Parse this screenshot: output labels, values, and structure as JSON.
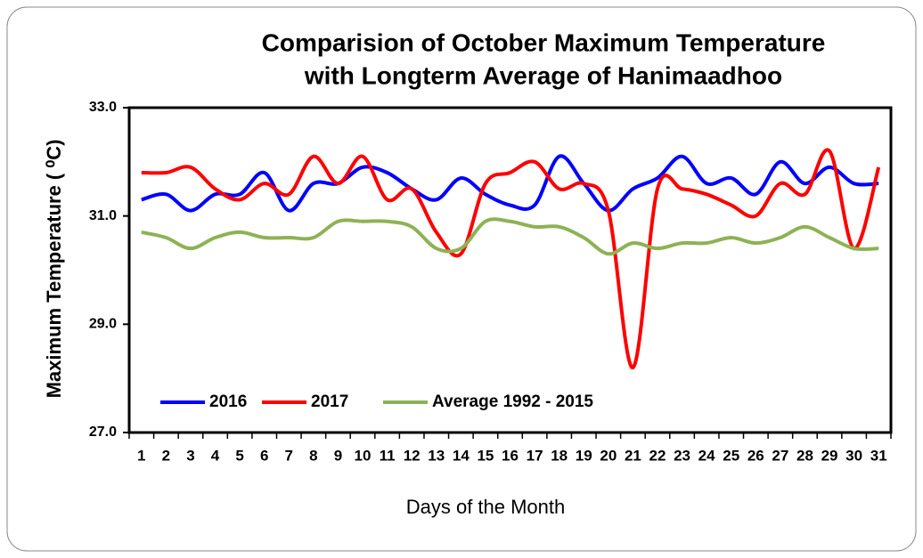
{
  "chart_data": {
    "type": "line",
    "title": [
      "Comparision of October Maximum Temperature",
      "with Longterm Average of Hanimaadhoo"
    ],
    "x_label": "Days of the Month",
    "y_label": "Maximum Temperature ( ⁰C)",
    "categories": [
      "1",
      "2",
      "3",
      "4",
      "5",
      "6",
      "7",
      "8",
      "9",
      "10",
      "11",
      "12",
      "13",
      "14",
      "15",
      "16",
      "17",
      "18",
      "19",
      "20",
      "21",
      "22",
      "23",
      "24",
      "25",
      "26",
      "27",
      "28",
      "29",
      "30",
      "31"
    ],
    "series": [
      {
        "name": "2016",
        "color": "#0000ff",
        "values": [
          31.3,
          31.4,
          31.1,
          31.4,
          31.4,
          31.8,
          31.1,
          31.6,
          31.6,
          31.9,
          31.8,
          31.5,
          31.3,
          31.7,
          31.4,
          31.2,
          31.2,
          32.1,
          31.6,
          31.1,
          31.5,
          31.7,
          32.1,
          31.6,
          31.7,
          31.4,
          32.0,
          31.6,
          31.9,
          31.6,
          31.6
        ]
      },
      {
        "name": "2017",
        "color": "#ff0000",
        "values": [
          31.8,
          31.8,
          31.9,
          31.5,
          31.3,
          31.6,
          31.4,
          32.1,
          31.6,
          32.1,
          31.3,
          31.5,
          30.7,
          30.3,
          31.6,
          31.8,
          32.0,
          31.5,
          31.6,
          31.1,
          28.2,
          31.5,
          31.5,
          31.4,
          31.2,
          31.0,
          31.6,
          31.4,
          32.2,
          30.4,
          31.9
        ]
      },
      {
        "name": "Average 1992 - 2015",
        "color": "#8db255",
        "values": [
          30.7,
          30.6,
          30.4,
          30.6,
          30.7,
          30.6,
          30.6,
          30.6,
          30.9,
          30.9,
          30.9,
          30.8,
          30.4,
          30.4,
          30.9,
          30.9,
          30.8,
          30.8,
          30.6,
          30.3,
          30.5,
          30.4,
          30.5,
          30.5,
          30.6,
          30.5,
          30.6,
          30.8,
          30.6,
          30.4,
          30.4
        ]
      }
    ],
    "ylim": [
      27,
      33
    ],
    "yticks": [
      {
        "value": 27,
        "label": "27.0"
      },
      {
        "value": 29,
        "label": "29.0"
      },
      {
        "value": 31,
        "label": "31.0"
      },
      {
        "value": 33,
        "label": "33.0"
      }
    ],
    "grid": false,
    "legend": "bottom-left"
  }
}
